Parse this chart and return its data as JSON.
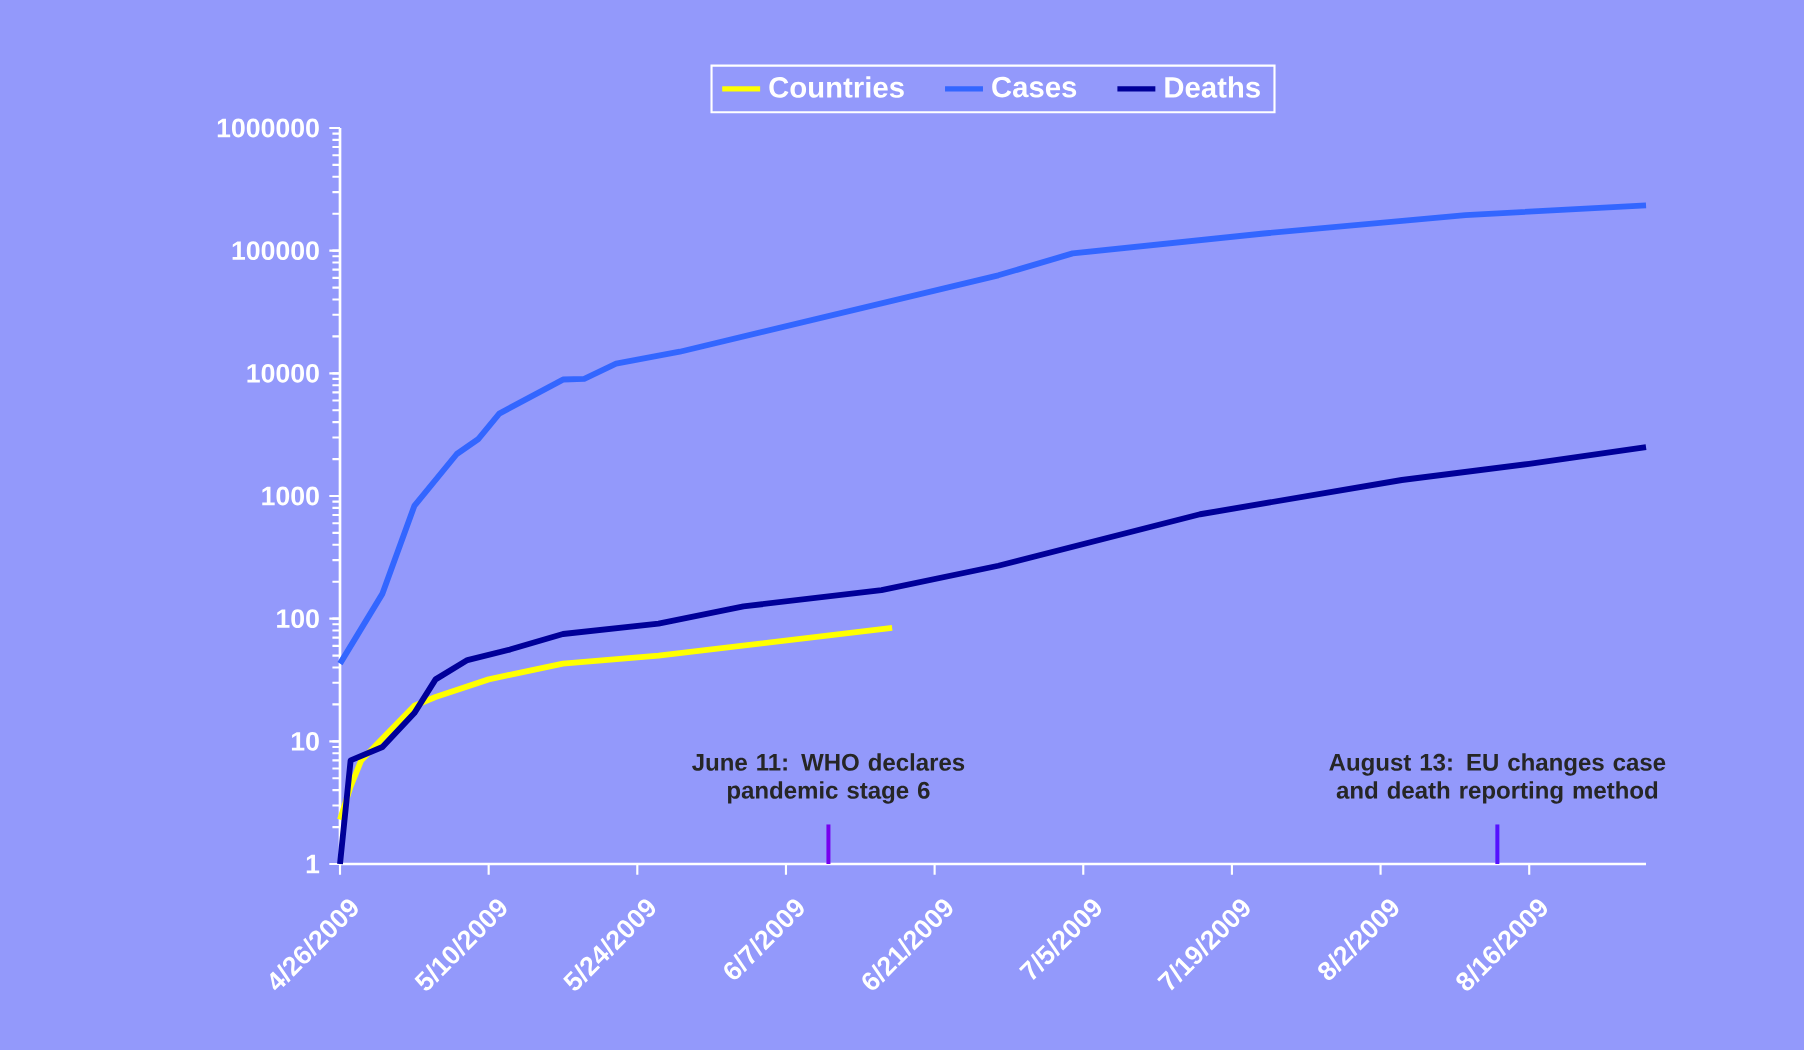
{
  "chart_data": {
    "type": "line",
    "log": "y",
    "legend": "top",
    "x": [
      "2009-04-26",
      "2009-04-30",
      "2009-05-03",
      "2009-05-07",
      "2009-05-09",
      "2009-05-11",
      "2009-05-17",
      "2009-05-19",
      "2009-05-22",
      "2009-05-28",
      "2009-06-27",
      "2009-07-04",
      "2009-07-22",
      "2009-08-10",
      "2009-08-27"
    ],
    "xlim": [
      "2009-04-26",
      "2009-08-27"
    ],
    "xticks": [
      {
        "value": "2009-04-26",
        "label": "4/26/2009"
      },
      {
        "value": "2009-05-10",
        "label": "5/10/2009"
      },
      {
        "value": "2009-05-24",
        "label": "5/24/2009"
      },
      {
        "value": "2009-06-07",
        "label": "6/7/2009"
      },
      {
        "value": "2009-06-21",
        "label": "6/21/2009"
      },
      {
        "value": "2009-07-05",
        "label": "7/5/2009"
      },
      {
        "value": "2009-07-19",
        "label": "7/19/2009"
      },
      {
        "value": "2009-08-02",
        "label": "8/2/2009"
      },
      {
        "value": "2009-08-16",
        "label": "8/16/2009"
      }
    ],
    "ylim": [
      1,
      1000000
    ],
    "yticks": [
      1,
      10,
      100,
      1000,
      10000,
      100000,
      1000000
    ],
    "series": [
      {
        "name": "Countries",
        "color": "#ffff00",
        "x": [
          "2009-04-26",
          "2009-04-27",
          "2009-04-28",
          "2009-05-03",
          "2009-05-05",
          "2009-05-10",
          "2009-05-17",
          "2009-05-26",
          "2009-06-17"
        ],
        "values": [
          2.3,
          4.3,
          7,
          19.5,
          23,
          32,
          43,
          50,
          84
        ]
      },
      {
        "name": "Cases",
        "color": "#3366ff",
        "values": [
          43,
          160,
          830,
          2200,
          2900,
          4700,
          8900,
          9000,
          12000,
          15000,
          63000,
          95000,
          138000,
          195000,
          234000
        ]
      },
      {
        "name": "Deaths",
        "color": "#000099",
        "x": [
          "2009-04-26",
          "2009-04-27",
          "2009-04-30",
          "2009-05-03",
          "2009-05-05",
          "2009-05-08",
          "2009-05-12",
          "2009-05-17",
          "2009-05-26",
          "2009-06-03",
          "2009-06-16",
          "2009-06-27",
          "2009-07-16",
          "2009-08-04",
          "2009-08-16",
          "2009-08-27"
        ],
        "values": [
          1,
          7,
          9,
          17,
          32,
          46,
          56,
          75,
          91,
          126,
          171,
          270,
          710,
          1350,
          1830,
          2500
        ]
      }
    ],
    "ref_lines": [
      {
        "axis": "x",
        "value": "2009-06-11",
        "label": "June 11: WHO declares pandemic stage 6",
        "color": "#7700ee"
      },
      {
        "axis": "x",
        "value": "2009-08-13",
        "label": "August 13: EU changes case and death reporting method",
        "color": "#5511ff"
      }
    ]
  }
}
